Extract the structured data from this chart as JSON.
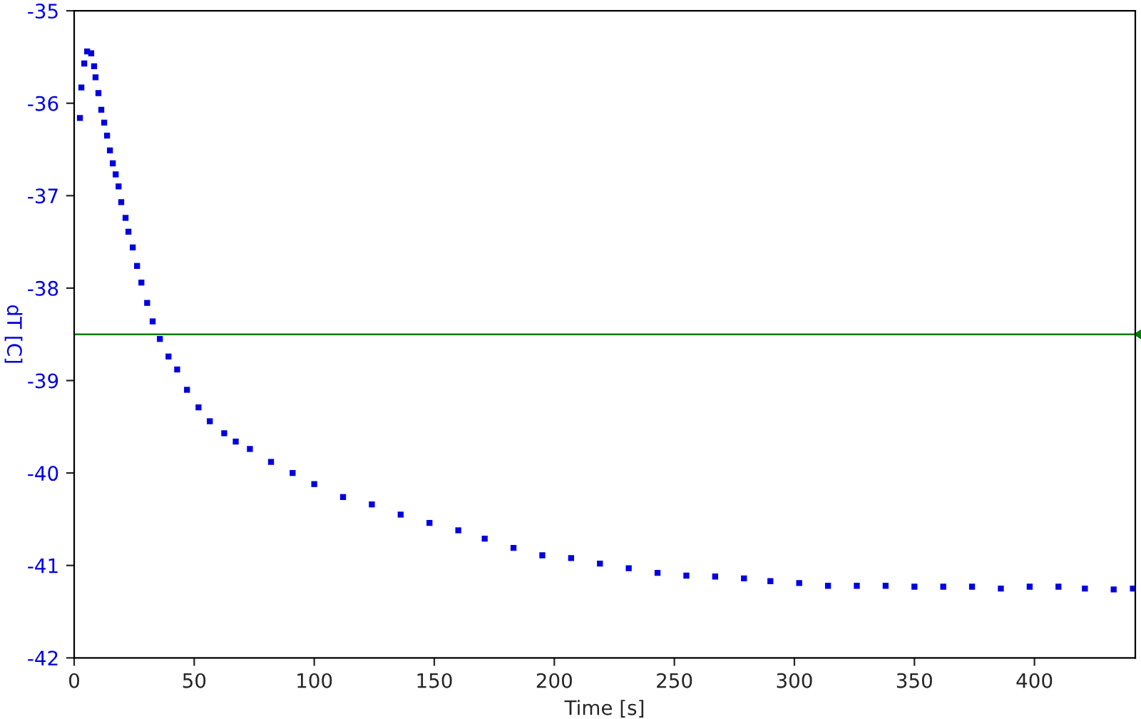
{
  "chart_data": {
    "type": "scatter",
    "xlabel": "Time [s]",
    "ylabel": "dT [C]",
    "xlim": [
      0,
      442
    ],
    "ylim": [
      -42,
      -35
    ],
    "xticks": [
      0,
      50,
      100,
      150,
      200,
      250,
      300,
      350,
      400
    ],
    "yticks": [
      -42,
      -41,
      -40,
      -39,
      -38,
      -37,
      -36,
      -35
    ],
    "grid": false,
    "legend": false,
    "marker": "square",
    "ref_lines": [
      {
        "axis": "y",
        "value": -38.5,
        "color": "#008000"
      }
    ],
    "series": [
      {
        "color": "#0000e0",
        "x": [
          2.4,
          3,
          4.2,
          5.4,
          7.1,
          8.3,
          8.9,
          10.1,
          11.3,
          12.5,
          13.7,
          14.9,
          16.1,
          17.3,
          18.5,
          19.6,
          21.4,
          22.6,
          24.4,
          26.2,
          28,
          30.4,
          32.7,
          35.7,
          39.3,
          42.9,
          47,
          51.8,
          56.5,
          62.5,
          67.3,
          73.2,
          82,
          91,
          100,
          112,
          124,
          136,
          148,
          160,
          171,
          183,
          195,
          207,
          219,
          231,
          243,
          255,
          267,
          279,
          290,
          302,
          314,
          326,
          338,
          350,
          362,
          374,
          386,
          398,
          410,
          421,
          433,
          441
        ],
        "values": [
          -36.16,
          -35.83,
          -35.57,
          -35.44,
          -35.46,
          -35.6,
          -35.72,
          -35.89,
          -36.07,
          -36.21,
          -36.35,
          -36.51,
          -36.65,
          -36.77,
          -36.9,
          -37.07,
          -37.24,
          -37.39,
          -37.56,
          -37.76,
          -37.94,
          -38.16,
          -38.36,
          -38.55,
          -38.74,
          -38.88,
          -39.1,
          -39.29,
          -39.44,
          -39.57,
          -39.66,
          -39.74,
          -39.88,
          -40.0,
          -40.12,
          -40.26,
          -40.34,
          -40.45,
          -40.54,
          -40.62,
          -40.71,
          -40.81,
          -40.89,
          -40.92,
          -40.98,
          -41.03,
          -41.08,
          -41.11,
          -41.12,
          -41.14,
          -41.17,
          -41.19,
          -41.22,
          -41.22,
          -41.22,
          -41.23,
          -41.23,
          -41.23,
          -41.25,
          -41.23,
          -41.23,
          -41.25,
          -41.26,
          -41.25
        ]
      }
    ]
  }
}
